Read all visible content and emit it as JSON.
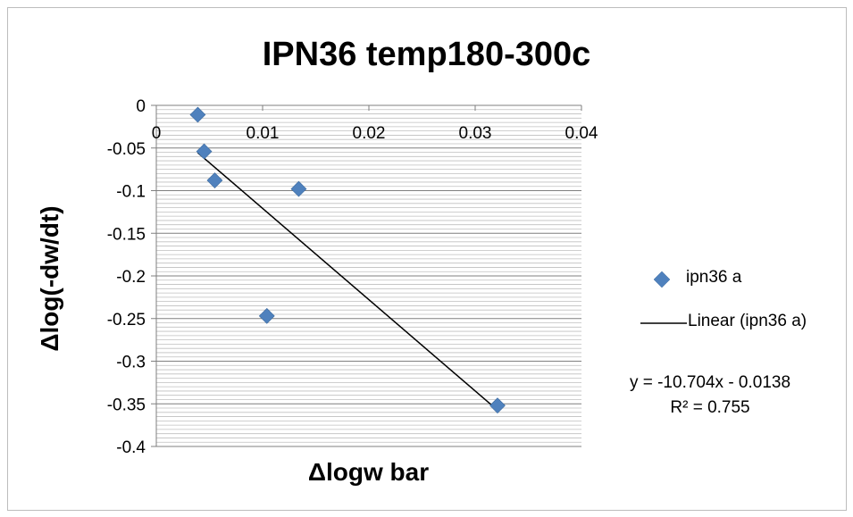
{
  "chart_data": {
    "type": "scatter",
    "title": "IPN36 temp180-300c",
    "xlabel": "Δlogw bar",
    "ylabel": "Δlog(-dw/dt)",
    "xlim": [
      0,
      0.04
    ],
    "ylim": [
      -0.4,
      0
    ],
    "x_ticks": [
      0,
      0.01,
      0.02,
      0.03,
      0.04
    ],
    "x_tick_labels": [
      "0",
      "0.01",
      "0.02",
      "0.03",
      "0.04"
    ],
    "y_ticks": [
      0,
      -0.05,
      -0.1,
      -0.15,
      -0.2,
      -0.25,
      -0.3,
      -0.35,
      -0.4
    ],
    "y_tick_labels": [
      "0",
      "-0.05",
      "-0.1",
      "-0.15",
      "-0.2",
      "-0.25",
      "-0.3",
      "-0.35",
      "-0.4"
    ],
    "x_axis_position": "top",
    "grid": true,
    "legend_position": "right",
    "series": [
      {
        "name": "ipn36 a",
        "marker": "diamond",
        "color": "#4f81bd",
        "points": [
          {
            "x": 0.0039,
            "y": -0.011
          },
          {
            "x": 0.0045,
            "y": -0.054
          },
          {
            "x": 0.0055,
            "y": -0.088
          },
          {
            "x": 0.0134,
            "y": -0.098
          },
          {
            "x": 0.0104,
            "y": -0.247
          },
          {
            "x": 0.0321,
            "y": -0.352
          }
        ]
      }
    ],
    "trendline": {
      "name": "Linear (ipn36 a)",
      "type": "linear",
      "slope": -10.704,
      "intercept": -0.0138,
      "x_range": [
        0.0039,
        0.0321
      ],
      "color": "#000000",
      "equation_label": "y = -10.704x - 0.0138",
      "r2_label": "R² = 0.755"
    }
  }
}
